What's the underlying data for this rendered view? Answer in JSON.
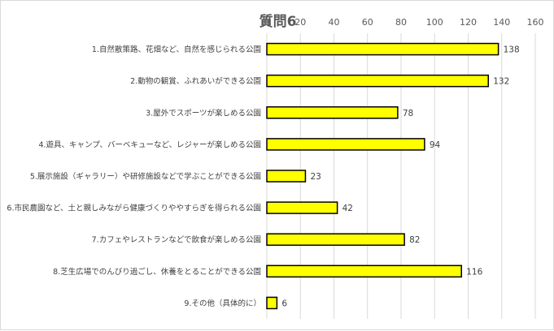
{
  "chart_data": {
    "type": "bar",
    "orientation": "horizontal",
    "title": "質問6",
    "categories": [
      "1.自然散策路、花畑など、自然を感じられる公園",
      "2.動物の観賞、ふれあいができる公園",
      "3.屋外でスポーツが楽しめる公園",
      "4.遊具、キャンプ、バーベキューなど、レジャーが楽しめる公園",
      "5.展示施設（ギャラリー）や研修施設などで学ぶことができる公園",
      "6.市民農園など、土と親しみながら健康づくりややすらぎを得られる公園",
      "7.カフェやレストランなどで飲食が楽しめる公園",
      "8.芝生広場でのんびり過ごし、休養をとることができる公園",
      "9.その他（具体的に）"
    ],
    "values": [
      138,
      132,
      78,
      94,
      23,
      42,
      82,
      116,
      6
    ],
    "xlim": [
      0,
      160
    ],
    "xticks": [
      0,
      20,
      40,
      60,
      80,
      100,
      120,
      140,
      160
    ],
    "grid": true,
    "axis_position": "top",
    "bar_color": "#ffff00",
    "bar_edge_color": "#000000",
    "grid_color": "#d9d9d9",
    "legend": "none"
  }
}
